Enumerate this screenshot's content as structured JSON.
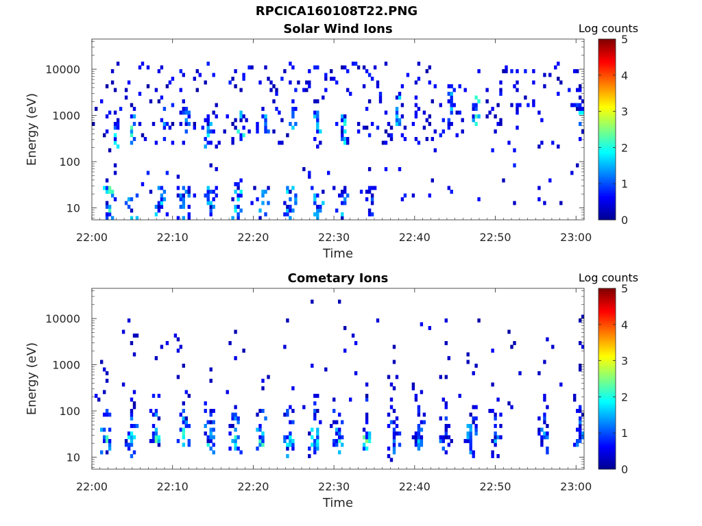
{
  "page": {
    "filename": "RPCICA160108T22.PNG"
  },
  "chart_data": [
    {
      "type": "heatmap",
      "title": "Solar Wind Ions",
      "xlabel": "Time",
      "ylabel": "Energy (eV)",
      "x_ticks": [
        "22:00",
        "22:10",
        "22:20",
        "22:30",
        "22:40",
        "22:50",
        "23:00"
      ],
      "x_range_minutes": [
        0,
        61
      ],
      "y_scale": "log",
      "y_ticks": [
        10,
        100,
        1000,
        10000
      ],
      "y_tick_labels": [
        "10",
        "100",
        "1000",
        "10000"
      ],
      "y_range": [
        5.5,
        45000
      ],
      "colorbar": {
        "label": "Log counts",
        "range": [
          0,
          5
        ],
        "ticks": [
          "0",
          "1",
          "2",
          "3",
          "4",
          "5"
        ]
      },
      "colormap": [
        "#00008f",
        "#0000ff",
        "#0080ff",
        "#00ffff",
        "#80ff80",
        "#ffff00",
        "#ff8000",
        "#ff0000",
        "#800000"
      ],
      "grid": false,
      "bursts": [
        {
          "t": 2.0,
          "c": 2.2
        },
        {
          "t": 5.0,
          "c": 1.6
        },
        {
          "t": 8.5,
          "c": 1.6
        },
        {
          "t": 11.5,
          "c": 1.2
        },
        {
          "t": 14.8,
          "c": 1.5
        },
        {
          "t": 18.0,
          "c": 1.9
        },
        {
          "t": 21.0,
          "c": 1.5
        },
        {
          "t": 24.5,
          "c": 1.6
        },
        {
          "t": 28.0,
          "c": 1.6
        },
        {
          "t": 31.0,
          "c": 1.5
        },
        {
          "t": 34.5,
          "c": 1.2
        }
      ],
      "features": [
        {
          "t": 3.0,
          "e": 300,
          "v": 1.6
        },
        {
          "t": 5.0,
          "e": 500,
          "v": 1.9
        },
        {
          "t": 9.0,
          "e": 650,
          "v": 1.4
        },
        {
          "t": 11.8,
          "e": 900,
          "v": 1.3
        },
        {
          "t": 14.5,
          "e": 450,
          "v": 1.5
        },
        {
          "t": 18.5,
          "e": 700,
          "v": 1.7
        },
        {
          "t": 21.5,
          "e": 900,
          "v": 1.4
        },
        {
          "t": 24.8,
          "e": 1000,
          "v": 1.6
        },
        {
          "t": 28.0,
          "e": 1000,
          "v": 1.6
        },
        {
          "t": 31.3,
          "e": 500,
          "v": 1.8
        },
        {
          "t": 38.0,
          "e": 1400,
          "v": 1.4
        },
        {
          "t": 44.5,
          "e": 1400,
          "v": 1.3
        },
        {
          "t": 47.5,
          "e": 1300,
          "v": 1.8
        },
        {
          "t": 60.5,
          "e": 1000,
          "v": 1.5
        }
      ]
    },
    {
      "type": "heatmap",
      "title": "Cometary Ions",
      "xlabel": "Time",
      "ylabel": "Energy (eV)",
      "x_ticks": [
        "22:00",
        "22:10",
        "22:20",
        "22:30",
        "22:40",
        "22:50",
        "23:00"
      ],
      "x_range_minutes": [
        0,
        61
      ],
      "y_scale": "log",
      "y_ticks": [
        10,
        100,
        1000,
        10000
      ],
      "y_tick_labels": [
        "10",
        "100",
        "1000",
        "10000"
      ],
      "y_range": [
        5.5,
        45000
      ],
      "colorbar": {
        "label": "Log counts",
        "range": [
          0,
          5
        ],
        "ticks": [
          "0",
          "1",
          "2",
          "3",
          "4",
          "5"
        ]
      },
      "colormap": [
        "#00008f",
        "#0000ff",
        "#0080ff",
        "#00ffff",
        "#80ff80",
        "#ffff00",
        "#ff8000",
        "#ff0000",
        "#800000"
      ],
      "grid": false,
      "bursts": [
        {
          "t": 1.8,
          "c": 2.9
        },
        {
          "t": 4.8,
          "c": 2.4
        },
        {
          "t": 8.0,
          "c": 2.6
        },
        {
          "t": 11.3,
          "c": 2.6
        },
        {
          "t": 14.5,
          "c": 2.5
        },
        {
          "t": 17.8,
          "c": 2.6
        },
        {
          "t": 21.0,
          "c": 2.8
        },
        {
          "t": 24.5,
          "c": 2.7
        },
        {
          "t": 27.5,
          "c": 2.4
        },
        {
          "t": 30.5,
          "c": 2.4
        },
        {
          "t": 34.0,
          "c": 2.7
        },
        {
          "t": 37.5,
          "c": 2.0
        },
        {
          "t": 40.5,
          "c": 1.8
        },
        {
          "t": 43.8,
          "c": 1.6
        },
        {
          "t": 46.8,
          "c": 2.2
        },
        {
          "t": 50.0,
          "c": 1.6
        },
        {
          "t": 56.0,
          "c": 1.6
        },
        {
          "t": 60.5,
          "c": 1.8
        }
      ],
      "features": []
    }
  ]
}
